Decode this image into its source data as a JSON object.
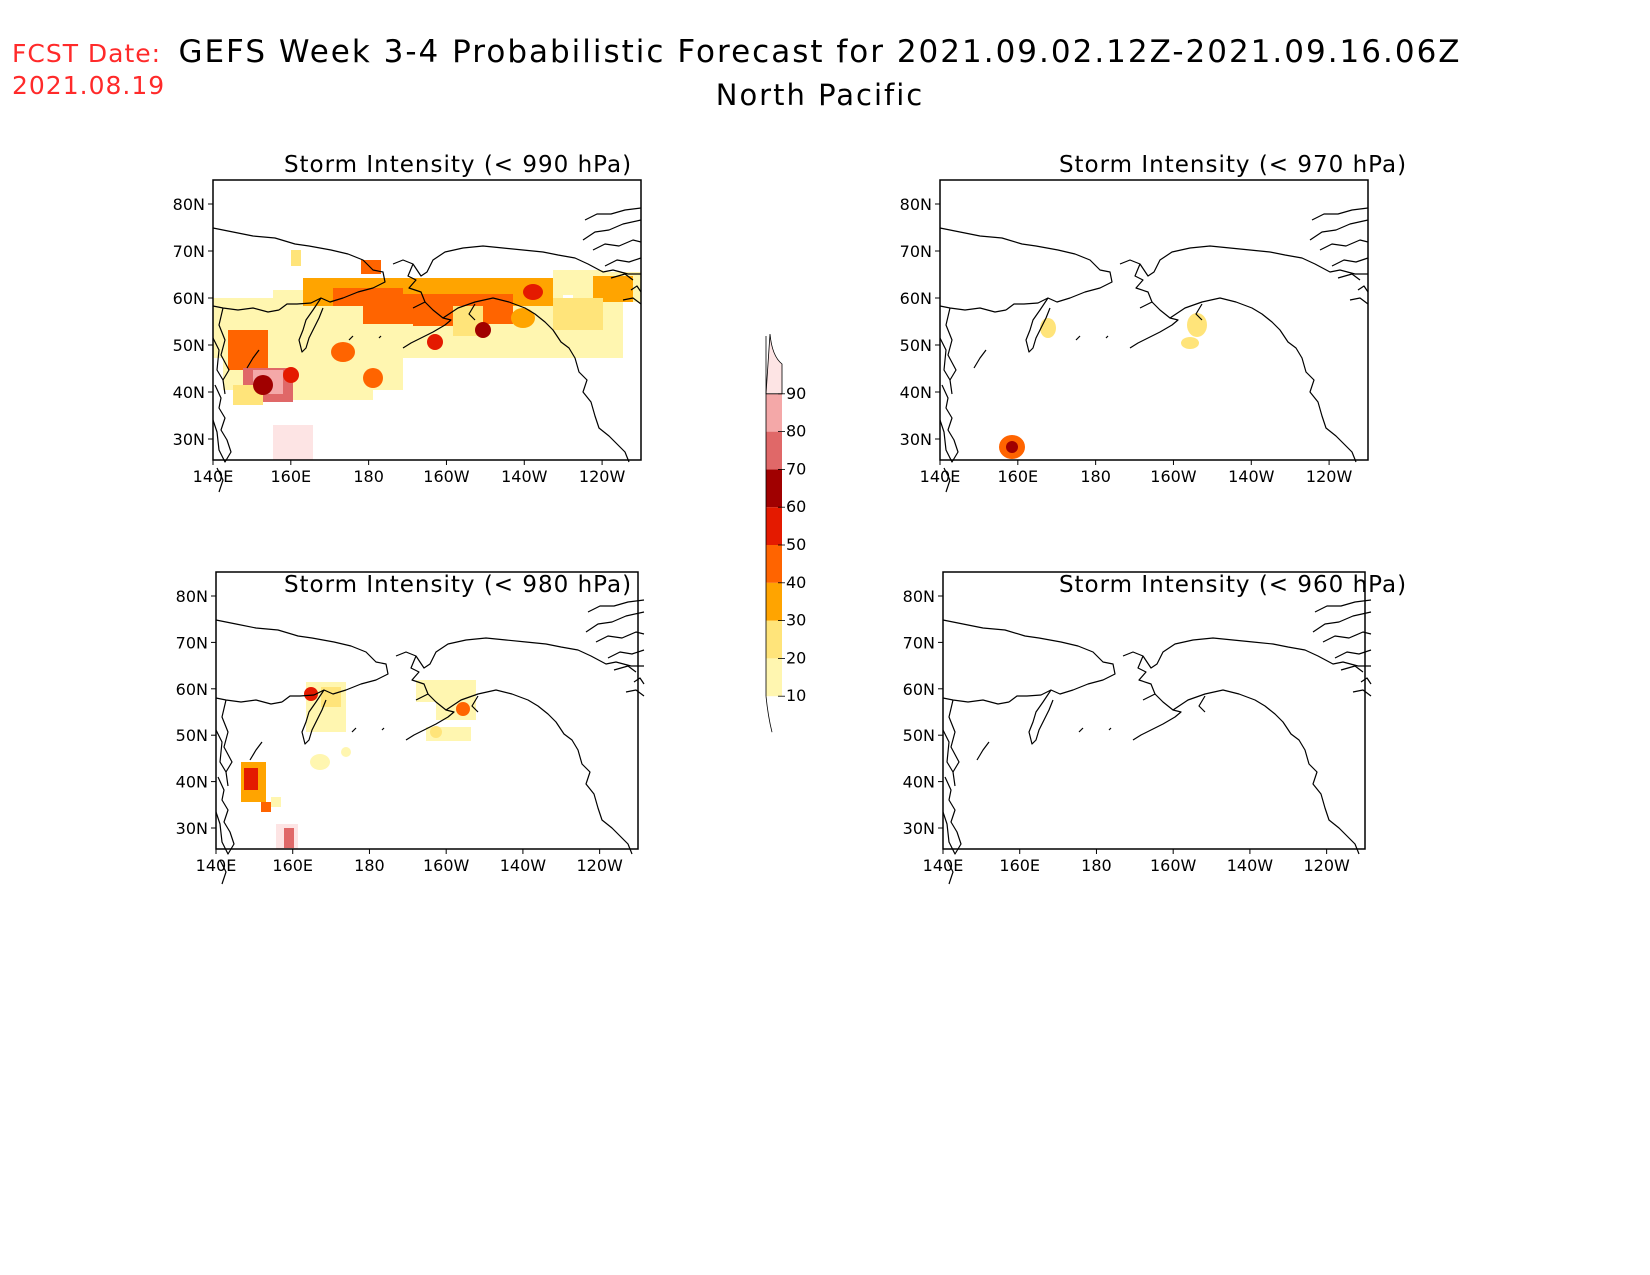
{
  "header": {
    "fcst_label": "FCST Date:",
    "fcst_date": "2021.08.19",
    "title": "GEFS Week 3-4 Probabilistic Forecast for 2021.09.02.12Z-2021.09.16.06Z",
    "subtitle": "North Pacific"
  },
  "panels": [
    {
      "id": "p990",
      "title": "Storm Intensity (< 990 hPa)"
    },
    {
      "id": "p970",
      "title": "Storm Intensity (< 970 hPa)"
    },
    {
      "id": "p980",
      "title": "Storm Intensity (< 980 hPa)"
    },
    {
      "id": "p960",
      "title": "Storm Intensity (< 960 hPa)"
    }
  ],
  "axes": {
    "x_ticks": [
      "140E",
      "160E",
      "180",
      "160W",
      "140W",
      "120W"
    ],
    "y_ticks": [
      "80N",
      "70N",
      "60N",
      "50N",
      "40N",
      "30N"
    ]
  },
  "colorbar": {
    "levels": [
      "10",
      "20",
      "30",
      "40",
      "50",
      "60",
      "70",
      "80",
      "90"
    ],
    "colors": [
      "#fff6b0",
      "#ffe47a",
      "#ffa400",
      "#ff6400",
      "#e41a00",
      "#a00000",
      "#e06868",
      "#f4a8a8",
      "#fde4e4"
    ]
  }
}
